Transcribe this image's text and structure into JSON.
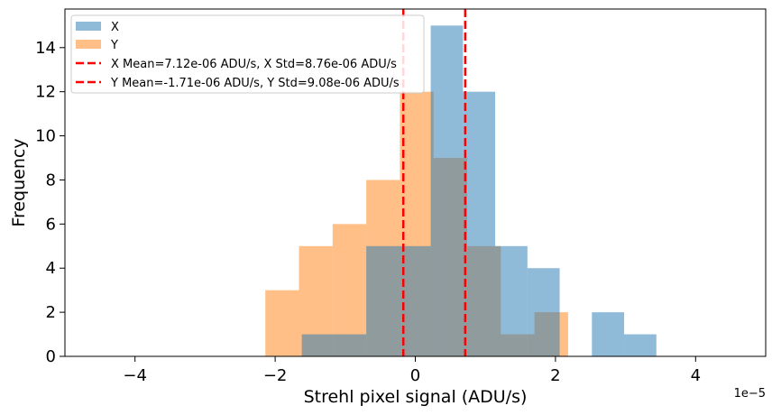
{
  "chart_data": {
    "type": "bar",
    "subtype": "histogram",
    "title": "",
    "xlabel": "Strehl pixel signal (ADU/s)",
    "ylabel": "Frequency",
    "xlim": [
      -5.0,
      5.0
    ],
    "ylim": [
      0,
      15.75
    ],
    "x_offset_label": "1e−5",
    "x_ticks": [
      {
        "value": -4,
        "label": "−4"
      },
      {
        "value": -2,
        "label": "−2"
      },
      {
        "value": 0,
        "label": "0"
      },
      {
        "value": 2,
        "label": "2"
      },
      {
        "value": 4,
        "label": "4"
      }
    ],
    "y_ticks": [
      {
        "value": 0,
        "label": "0"
      },
      {
        "value": 2,
        "label": "2"
      },
      {
        "value": 4,
        "label": "4"
      },
      {
        "value": 6,
        "label": "6"
      },
      {
        "value": 8,
        "label": "8"
      },
      {
        "value": 10,
        "label": "10"
      },
      {
        "value": 12,
        "label": "12"
      },
      {
        "value": 14,
        "label": "14"
      }
    ],
    "grid": false,
    "legend_position": "top-left",
    "series": [
      {
        "name": "X",
        "color": "#1f77b4",
        "opacity": 0.5,
        "bin_edges": [
          -1.62,
          -1.16,
          -0.7,
          -0.24,
          0.22,
          0.68,
          1.14,
          1.6,
          2.06,
          2.52,
          2.98,
          3.44
        ],
        "counts": [
          1,
          1,
          5,
          5,
          15,
          12,
          5,
          4,
          0,
          2,
          1
        ]
      },
      {
        "name": "Y",
        "color": "#ff7f0e",
        "opacity": 0.5,
        "bin_edges": [
          -2.14,
          -1.66,
          -1.18,
          -0.7,
          -0.22,
          0.26,
          0.74,
          1.22,
          1.7,
          2.18
        ],
        "counts": [
          3,
          5,
          6,
          8,
          12,
          9,
          5,
          1,
          2
        ]
      }
    ],
    "reference_lines": [
      {
        "name": "X Mean=7.12e-06 ADU/s, X Std=8.76e-06 ADU/s",
        "x": 0.712,
        "color": "#ff0000",
        "style": "dashed"
      },
      {
        "name": "Y Mean=-1.71e-06 ADU/s, Y Std=9.08e-06 ADU/s",
        "x": -0.171,
        "color": "#ff0000",
        "style": "dashed"
      }
    ]
  }
}
